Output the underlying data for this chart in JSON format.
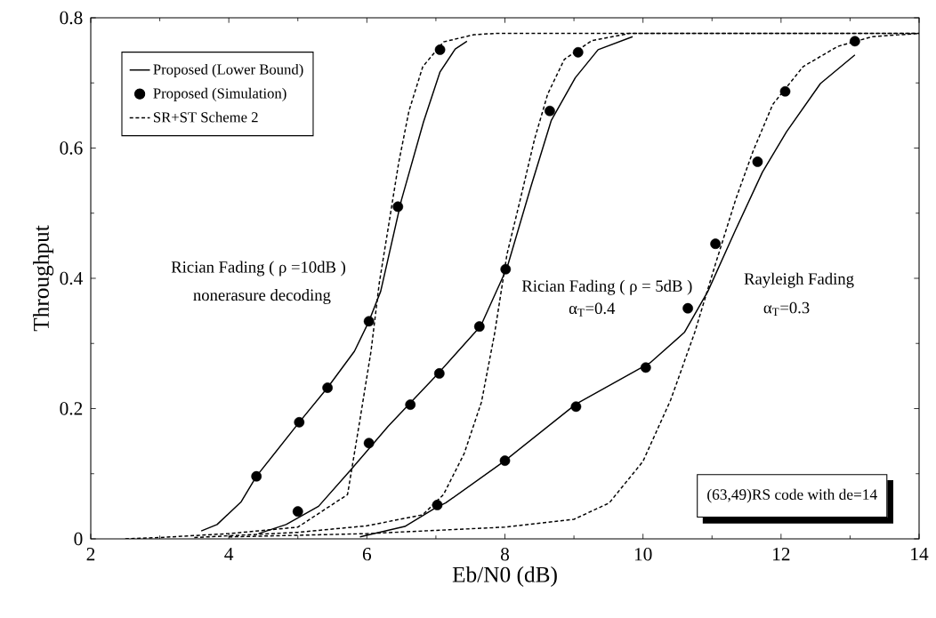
{
  "chart_data": {
    "type": "line",
    "xlabel": "Eb/N0 (dB)",
    "ylabel": "Throughput",
    "xlim": [
      2,
      14
    ],
    "ylim": [
      0,
      0.8
    ],
    "xticks": [
      2,
      4,
      6,
      8,
      10,
      12,
      14
    ],
    "yticks": [
      0,
      0.2,
      0.4,
      0.6,
      0.8
    ],
    "legend": "top left",
    "annotations": [
      "Rician Fading ( ρ =10dB )",
      "nonerasure decoding",
      "Rician Fading ( ρ = 5dB )",
      "α$_{T}$=0.4",
      "Rayleigh Fading",
      "α$_{T}$=0.3",
      "(63,49)RS code with de=14"
    ],
    "series": [
      {
        "name": "Proposed (Lower Bound)",
        "line_style": "solid",
        "color": "#000000",
        "x": [
          3.6,
          3.83,
          4.18,
          4.4,
          5.02,
          5.43,
          5.82,
          6.03,
          6.2,
          6.5,
          6.82,
          7.06,
          7.28,
          7.45
        ],
        "values": [
          0.012,
          0.022,
          0.057,
          0.096,
          0.179,
          0.232,
          0.288,
          0.334,
          0.38,
          0.52,
          0.64,
          0.717,
          0.752,
          0.764
        ]
      },
      {
        "line_style": "solid",
        "color": "#000000",
        "x": [
          4.43,
          4.83,
          5.3,
          5.76,
          6.31,
          7.0,
          7.65,
          8.03,
          8.38,
          8.67,
          9.02,
          9.35,
          9.85
        ],
        "values": [
          0.008,
          0.022,
          0.05,
          0.105,
          0.173,
          0.25,
          0.327,
          0.416,
          0.542,
          0.642,
          0.708,
          0.751,
          0.771
        ]
      },
      {
        "line_style": "solid",
        "color": "#000000",
        "x": [
          5.9,
          6.55,
          7.0,
          7.14,
          8.0,
          9.03,
          10.1,
          10.6,
          10.94,
          11.34,
          11.73,
          12.08,
          12.57,
          13.07
        ],
        "values": [
          0.003,
          0.019,
          0.048,
          0.055,
          0.12,
          0.207,
          0.27,
          0.317,
          0.38,
          0.474,
          0.563,
          0.625,
          0.699,
          0.743
        ]
      },
      {
        "name": "Proposed (Simulation)",
        "type": "scatter",
        "marker": "circle",
        "color": "#000000",
        "x": [
          4.4,
          5.02,
          5.43,
          6.03,
          6.45,
          7.06
        ],
        "values": [
          0.096,
          0.179,
          0.232,
          0.334,
          0.51,
          0.751
        ]
      },
      {
        "type": "scatter",
        "marker": "circle",
        "color": "#000000",
        "x": [
          5.0,
          6.03,
          6.63,
          7.05,
          7.63,
          8.01,
          8.65,
          9.06
        ],
        "values": [
          0.042,
          0.147,
          0.206,
          0.254,
          0.326,
          0.414,
          0.657,
          0.747
        ]
      },
      {
        "type": "scatter",
        "marker": "circle",
        "color": "#000000",
        "x": [
          7.02,
          8.0,
          9.03,
          10.04,
          10.65,
          11.05,
          11.66,
          12.06,
          13.07
        ],
        "values": [
          0.052,
          0.12,
          0.203,
          0.263,
          0.354,
          0.453,
          0.579,
          0.687,
          0.764
        ]
      },
      {
        "name": "SR+ST Scheme 2",
        "line_style": "dashed",
        "color": "#000000",
        "x": [
          2.5,
          3,
          4,
          5,
          5.72,
          5.9,
          6.06,
          6.18,
          6.31,
          6.46,
          6.61,
          6.81,
          7.11,
          7.55,
          7.86,
          14
        ],
        "values": [
          0,
          0.002,
          0.008,
          0.018,
          0.068,
          0.183,
          0.288,
          0.393,
          0.478,
          0.577,
          0.657,
          0.725,
          0.763,
          0.774,
          0.776,
          0.776
        ]
      },
      {
        "line_style": "dashed",
        "color": "#000000",
        "x": [
          3.5,
          5,
          6,
          6.81,
          7.11,
          7.41,
          7.66,
          7.85,
          8.03,
          8.22,
          8.43,
          8.62,
          8.86,
          9.26,
          9.8,
          14
        ],
        "values": [
          0.002,
          0.01,
          0.02,
          0.037,
          0.068,
          0.131,
          0.21,
          0.315,
          0.437,
          0.52,
          0.614,
          0.683,
          0.736,
          0.765,
          0.776,
          0.776
        ]
      },
      {
        "line_style": "dashed",
        "color": "#000000",
        "x": [
          4,
          6,
          8,
          9,
          9.51,
          10.0,
          10.4,
          10.75,
          11.05,
          11.34,
          11.59,
          11.88,
          12.32,
          12.82,
          13.32,
          14
        ],
        "values": [
          0.003,
          0.008,
          0.018,
          0.03,
          0.055,
          0.119,
          0.213,
          0.317,
          0.422,
          0.52,
          0.594,
          0.667,
          0.725,
          0.756,
          0.771,
          0.776
        ]
      }
    ]
  }
}
